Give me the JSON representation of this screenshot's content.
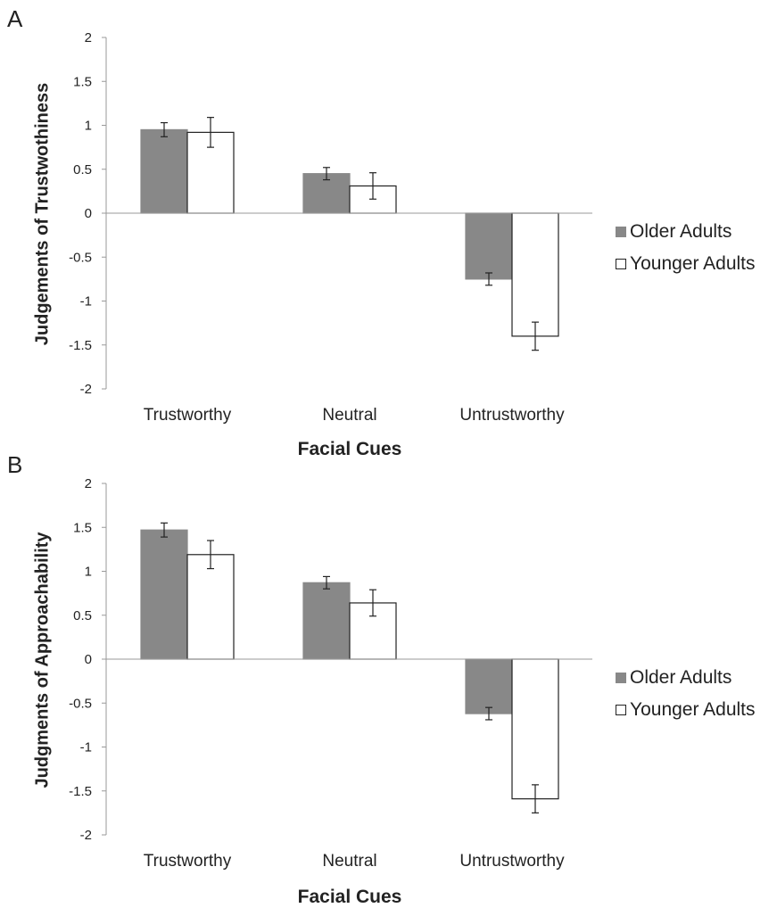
{
  "chart_data": [
    {
      "panel_label": "A",
      "type": "bar",
      "categories": [
        "Trustworthy",
        "Neutral",
        "Untrustworthy"
      ],
      "series": [
        {
          "name": "Older Adults",
          "values": [
            0.95,
            0.45,
            -0.75
          ],
          "errors": [
            0.08,
            0.07,
            0.07
          ],
          "color": "#888888"
        },
        {
          "name": "Younger Adults",
          "values": [
            0.92,
            0.31,
            -1.4
          ],
          "errors": [
            0.17,
            0.15,
            0.16
          ],
          "color": "#ffffff"
        }
      ],
      "ylim": [
        -2,
        2
      ],
      "yticks": [
        "2",
        "1.5",
        "1",
        "0.5",
        "0",
        "-0.5",
        "-1",
        "-1.5",
        "-2"
      ],
      "ytick_values": [
        2,
        1.5,
        1,
        0.5,
        0,
        -0.5,
        -1,
        -1.5,
        -2
      ],
      "xlabel": "Facial Cues",
      "ylabel": "Judgements of Trustwothiness",
      "legend_position": "right"
    },
    {
      "panel_label": "B",
      "type": "bar",
      "categories": [
        "Trustworthy",
        "Neutral",
        "Untrustworthy"
      ],
      "series": [
        {
          "name": "Older Adults",
          "values": [
            1.47,
            0.87,
            -0.62
          ],
          "errors": [
            0.08,
            0.07,
            0.07
          ],
          "color": "#888888"
        },
        {
          "name": "Younger Adults",
          "values": [
            1.19,
            0.64,
            -1.59
          ],
          "errors": [
            0.16,
            0.15,
            0.16
          ],
          "color": "#ffffff"
        }
      ],
      "ylim": [
        -2,
        2
      ],
      "yticks": [
        "2",
        "1.5",
        "1",
        "0.5",
        "0",
        "-0.5",
        "-1",
        "-1.5",
        "-2"
      ],
      "ytick_values": [
        2,
        1.5,
        1,
        0.5,
        0,
        -0.5,
        -1,
        -1.5,
        -2
      ],
      "xlabel": "Facial Cues",
      "ylabel": "Judgments of Approachability",
      "legend_position": "right"
    }
  ]
}
